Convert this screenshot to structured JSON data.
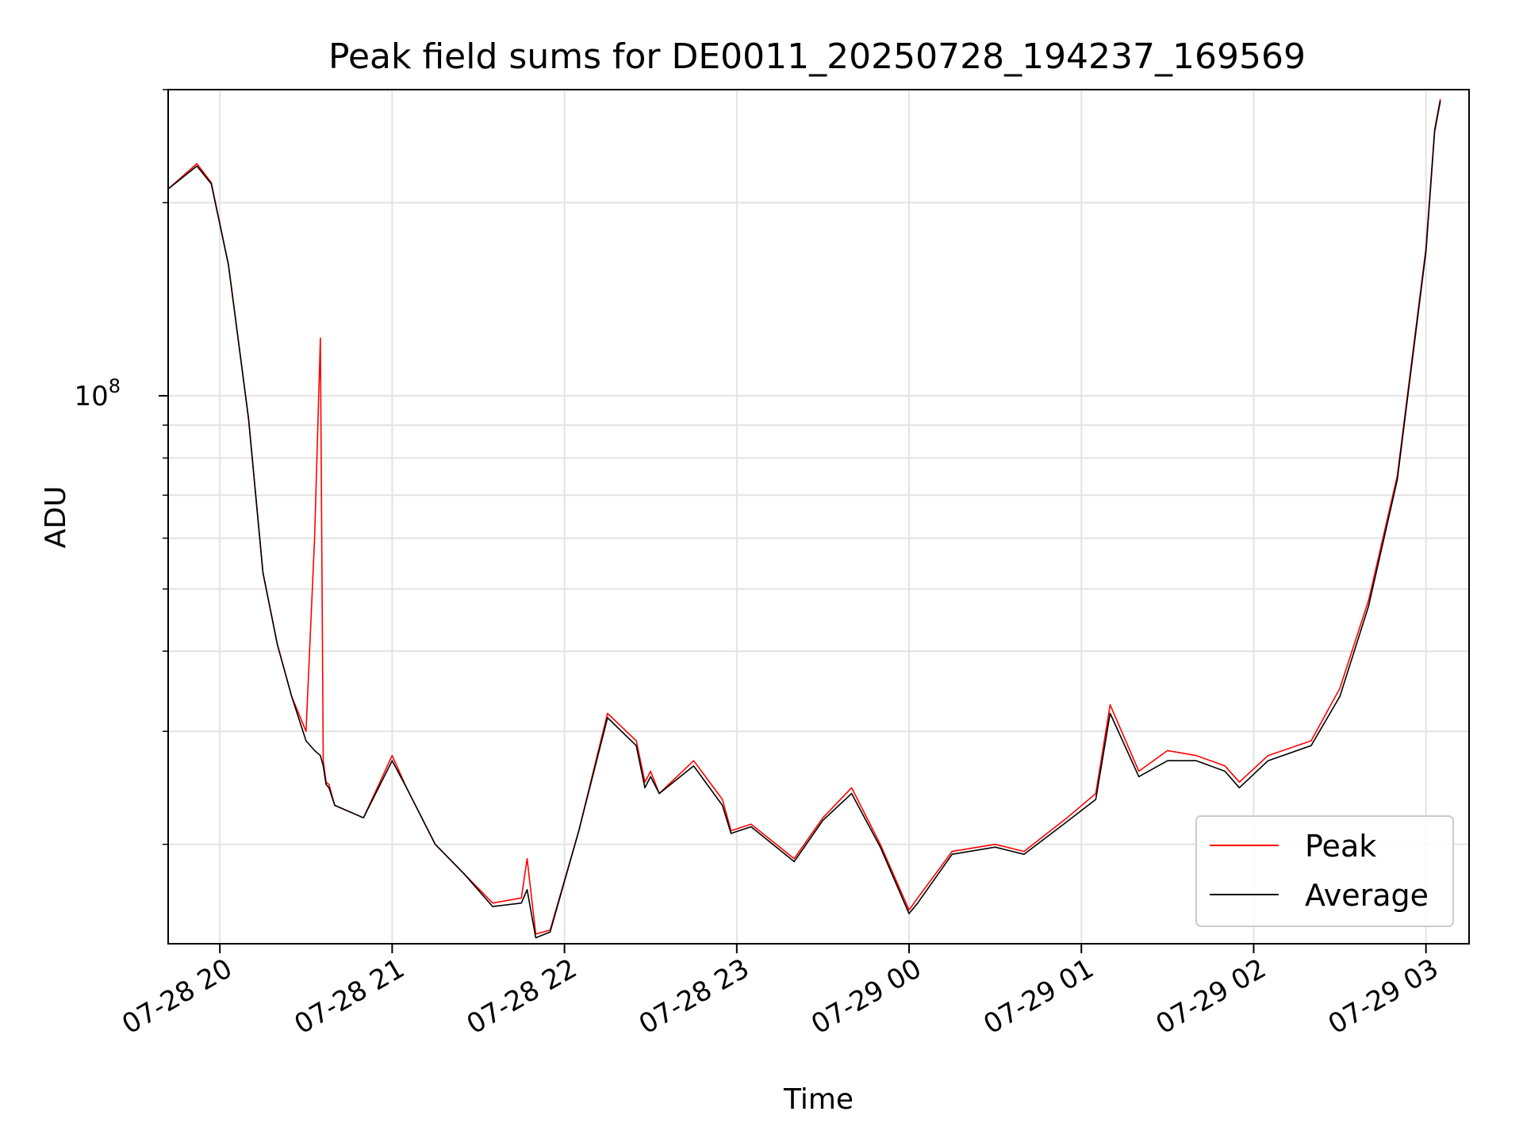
{
  "chart_data": {
    "type": "line",
    "title": "Peak field sums for DE0011_20250728_194237_169569",
    "xlabel": "Time",
    "ylabel": "ADU",
    "yscale": "log",
    "grid": true,
    "legend_position": "lower right",
    "x_tick_labels": [
      "07-28 20",
      "07-28 21",
      "07-28 22",
      "07-28 23",
      "07-29 00",
      "07-29 01",
      "07-29 02",
      "07-29 03"
    ],
    "y_tick_labels": [
      {
        "base": "10",
        "exp": "8"
      }
    ],
    "xlim": [
      "07-28 19:42",
      "07-29 03:15"
    ],
    "ylim": [
      14000000,
      300000000
    ],
    "series": [
      {
        "name": "Peak",
        "color": "#ff0000",
        "x": [
          "07-28 19:42",
          "07-28 19:52",
          "07-28 19:57",
          "07-28 20:03",
          "07-28 20:10",
          "07-28 20:15",
          "07-28 20:20",
          "07-28 20:25",
          "07-28 20:30",
          "07-28 20:33",
          "07-28 20:35",
          "07-28 20:36",
          "07-28 20:37",
          "07-28 20:38",
          "07-28 20:40",
          "07-28 20:50",
          "07-28 21:00",
          "07-28 21:05",
          "07-28 21:15",
          "07-28 21:25",
          "07-28 21:35",
          "07-28 21:45",
          "07-28 21:47",
          "07-28 21:50",
          "07-28 21:55",
          "07-28 22:05",
          "07-28 22:15",
          "07-28 22:25",
          "07-28 22:28",
          "07-28 22:30",
          "07-28 22:33",
          "07-28 22:45",
          "07-28 22:55",
          "07-28 22:58",
          "07-28 23:05",
          "07-28 23:20",
          "07-28 23:30",
          "07-28 23:40",
          "07-28 23:50",
          "07-29 00:00",
          "07-29 00:03",
          "07-29 00:15",
          "07-29 00:30",
          "07-29 00:40",
          "07-29 00:55",
          "07-29 01:05",
          "07-29 01:10",
          "07-29 01:20",
          "07-29 01:30",
          "07-29 01:40",
          "07-29 01:50",
          "07-29 01:55",
          "07-29 02:05",
          "07-29 02:20",
          "07-29 02:30",
          "07-29 02:40",
          "07-29 02:50",
          "07-29 03:00",
          "07-29 03:03",
          "07-29 03:05"
        ],
        "values": [
          210000000,
          230000000,
          215000000,
          160000000,
          92000000,
          53000000,
          41000000,
          34000000,
          30000000,
          60000000,
          123000000,
          27000000,
          25000000,
          24800000,
          23000000,
          22000000,
          27500000,
          24500000,
          20000000,
          18000000,
          16200000,
          16500000,
          19000000,
          14500000,
          14700000,
          21000000,
          32000000,
          29000000,
          25000000,
          26000000,
          24000000,
          27000000,
          23500000,
          21000000,
          21500000,
          19000000,
          22000000,
          24500000,
          20000000,
          15800000,
          16500000,
          19500000,
          20000000,
          19500000,
          22000000,
          24000000,
          33000000,
          26000000,
          28000000,
          27500000,
          26500000,
          25000000,
          27500000,
          29000000,
          35000000,
          48000000,
          75000000,
          170000000,
          260000000,
          290000000
        ]
      },
      {
        "name": "Average",
        "color": "#000000",
        "x": [
          "07-28 19:42",
          "07-28 19:52",
          "07-28 19:57",
          "07-28 20:03",
          "07-28 20:10",
          "07-28 20:15",
          "07-28 20:20",
          "07-28 20:25",
          "07-28 20:30",
          "07-28 20:33",
          "07-28 20:35",
          "07-28 20:36",
          "07-28 20:37",
          "07-28 20:38",
          "07-28 20:40",
          "07-28 20:50",
          "07-28 21:00",
          "07-28 21:05",
          "07-28 21:15",
          "07-28 21:25",
          "07-28 21:35",
          "07-28 21:45",
          "07-28 21:47",
          "07-28 21:50",
          "07-28 21:55",
          "07-28 22:05",
          "07-28 22:15",
          "07-28 22:25",
          "07-28 22:28",
          "07-28 22:30",
          "07-28 22:33",
          "07-28 22:45",
          "07-28 22:55",
          "07-28 22:58",
          "07-28 23:05",
          "07-28 23:20",
          "07-28 23:30",
          "07-28 23:40",
          "07-28 23:50",
          "07-29 00:00",
          "07-29 00:03",
          "07-29 00:15",
          "07-29 00:30",
          "07-29 00:40",
          "07-29 00:55",
          "07-29 01:05",
          "07-29 01:10",
          "07-29 01:20",
          "07-29 01:30",
          "07-29 01:40",
          "07-29 01:50",
          "07-29 01:55",
          "07-29 02:05",
          "07-29 02:20",
          "07-29 02:30",
          "07-29 02:40",
          "07-29 02:50",
          "07-29 03:00",
          "07-29 03:03",
          "07-29 03:05"
        ],
        "values": [
          210000000,
          228000000,
          214000000,
          160000000,
          92000000,
          53000000,
          41000000,
          34000000,
          29000000,
          28000000,
          27500000,
          26500000,
          24800000,
          24500000,
          23000000,
          22000000,
          27000000,
          24500000,
          20000000,
          18000000,
          16000000,
          16200000,
          17000000,
          14300000,
          14600000,
          21000000,
          31500000,
          28500000,
          24500000,
          25500000,
          24000000,
          26500000,
          23000000,
          20800000,
          21300000,
          18800000,
          21800000,
          24000000,
          19800000,
          15600000,
          16200000,
          19300000,
          19800000,
          19300000,
          21700000,
          23500000,
          32000000,
          25500000,
          27000000,
          27000000,
          26000000,
          24500000,
          27000000,
          28500000,
          34000000,
          47000000,
          74000000,
          168000000,
          258000000,
          288000000
        ]
      }
    ]
  }
}
